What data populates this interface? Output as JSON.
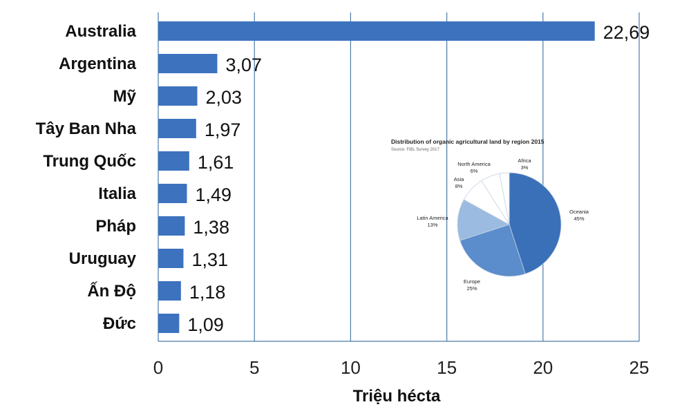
{
  "chart_data": [
    {
      "type": "bar",
      "orientation": "horizontal",
      "categories": [
        "Australia",
        "Argentina",
        "Mỹ",
        "Tây Ban Nha",
        "Trung Quốc",
        "Italia",
        "Pháp",
        "Uruguay",
        "Ấn Độ",
        "Đức"
      ],
      "values": [
        22.69,
        3.07,
        2.03,
        1.97,
        1.61,
        1.49,
        1.38,
        1.31,
        1.18,
        1.09
      ],
      "data_labels": [
        "22,69",
        "3,07",
        "2,03",
        "1,97",
        "1,61",
        "1,49",
        "1,38",
        "1,31",
        "1,18",
        "1,09"
      ],
      "xlabel": "Triệu hécta",
      "xlim": [
        0,
        25
      ],
      "xticks": [
        "0",
        "5",
        "10",
        "15",
        "20",
        "25"
      ],
      "grid": "vertical",
      "color": "#3c72be"
    },
    {
      "type": "pie",
      "title": "Distribution of organic agricultural land by region 2015",
      "subtitle": "Source: FiBL Survey 2017",
      "slices": [
        {
          "name": "Oceania",
          "value": 45,
          "label": "45%",
          "color": "#3a70b8"
        },
        {
          "name": "Europe",
          "value": 25,
          "label": "25%",
          "color": "#5b8ccb"
        },
        {
          "name": "Latin America",
          "value": 13,
          "label": "13%",
          "color": "#9cbbe0"
        },
        {
          "name": "Asia",
          "value": 8,
          "label": "8%",
          "color": "#ffffff"
        },
        {
          "name": "North America",
          "value": 6,
          "label": "6%",
          "color": "#ffffff"
        },
        {
          "name": "Africa",
          "value": 3,
          "label": "3%",
          "color": "#ffffff"
        }
      ]
    }
  ]
}
